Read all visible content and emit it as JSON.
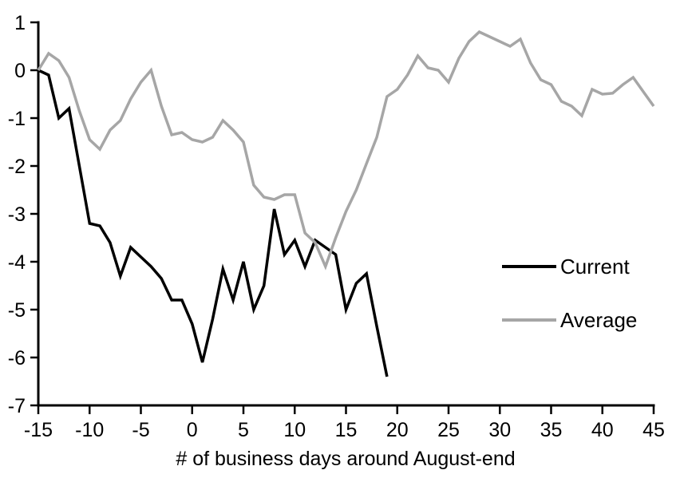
{
  "chart_data": {
    "type": "line",
    "title": "",
    "xlabel": "# of business days around August-end",
    "ylabel": "",
    "xlim": [
      -15,
      45
    ],
    "ylim": [
      -7,
      1
    ],
    "x_ticks": [
      -15,
      -10,
      -5,
      0,
      5,
      10,
      15,
      20,
      25,
      30,
      35,
      40,
      45
    ],
    "y_ticks": [
      1,
      0,
      -1,
      -2,
      -3,
      -4,
      -5,
      -6,
      -7
    ],
    "grid": false,
    "legend_position": "middle-right",
    "series": [
      {
        "name": "Current",
        "color": "#000000",
        "x": [
          -15,
          -14,
          -13,
          -12,
          -11,
          -10,
          -9,
          -8,
          -7,
          -6,
          -5,
          -4,
          -3,
          -2,
          -1,
          0,
          1,
          2,
          3,
          4,
          5,
          6,
          7,
          8,
          9,
          10,
          11,
          12,
          13,
          14,
          15,
          16,
          17,
          18,
          19
        ],
        "values": [
          0,
          -0.1,
          -1.0,
          -0.8,
          -2.0,
          -3.2,
          -3.25,
          -3.6,
          -4.3,
          -3.7,
          -3.9,
          -4.1,
          -4.35,
          -4.8,
          -4.8,
          -5.3,
          -6.1,
          -5.2,
          -4.15,
          -4.8,
          -4.0,
          -5.0,
          -4.5,
          -2.9,
          -3.85,
          -3.55,
          -4.1,
          -3.55,
          -3.7,
          -3.85,
          -5.0,
          -4.45,
          -4.25,
          -5.35,
          -6.4
        ]
      },
      {
        "name": "Average",
        "color": "#a6a6a6",
        "x": [
          -15,
          -14,
          -13,
          -12,
          -11,
          -10,
          -9,
          -8,
          -7,
          -6,
          -5,
          -4,
          -3,
          -2,
          -1,
          0,
          1,
          2,
          3,
          4,
          5,
          6,
          7,
          8,
          9,
          10,
          11,
          12,
          13,
          14,
          15,
          16,
          17,
          18,
          19,
          20,
          21,
          22,
          23,
          24,
          25,
          26,
          27,
          28,
          29,
          30,
          31,
          32,
          33,
          34,
          35,
          36,
          37,
          38,
          39,
          40,
          41,
          42,
          43,
          44,
          45
        ],
        "values": [
          0,
          0.35,
          0.2,
          -0.15,
          -0.85,
          -1.45,
          -1.65,
          -1.25,
          -1.05,
          -0.6,
          -0.25,
          0.0,
          -0.75,
          -1.35,
          -1.3,
          -1.45,
          -1.5,
          -1.4,
          -1.05,
          -1.25,
          -1.5,
          -2.4,
          -2.65,
          -2.7,
          -2.6,
          -2.6,
          -3.4,
          -3.6,
          -4.1,
          -3.5,
          -2.95,
          -2.5,
          -1.95,
          -1.4,
          -0.55,
          -0.4,
          -0.1,
          0.3,
          0.05,
          0.0,
          -0.25,
          0.25,
          0.6,
          0.8,
          0.7,
          0.6,
          0.5,
          0.65,
          0.15,
          -0.2,
          -0.3,
          -0.65,
          -0.75,
          -0.95,
          -0.4,
          -0.5,
          -0.48,
          -0.3,
          -0.15,
          -0.45,
          -0.75
        ]
      }
    ]
  },
  "legend": {
    "items": [
      {
        "label": "Current",
        "color": "#000000"
      },
      {
        "label": "Average",
        "color": "#a6a6a6"
      }
    ]
  },
  "colors": {
    "background": "#ffffff",
    "axis": "#000000",
    "current_line": "#000000",
    "average_line": "#a6a6a6"
  }
}
